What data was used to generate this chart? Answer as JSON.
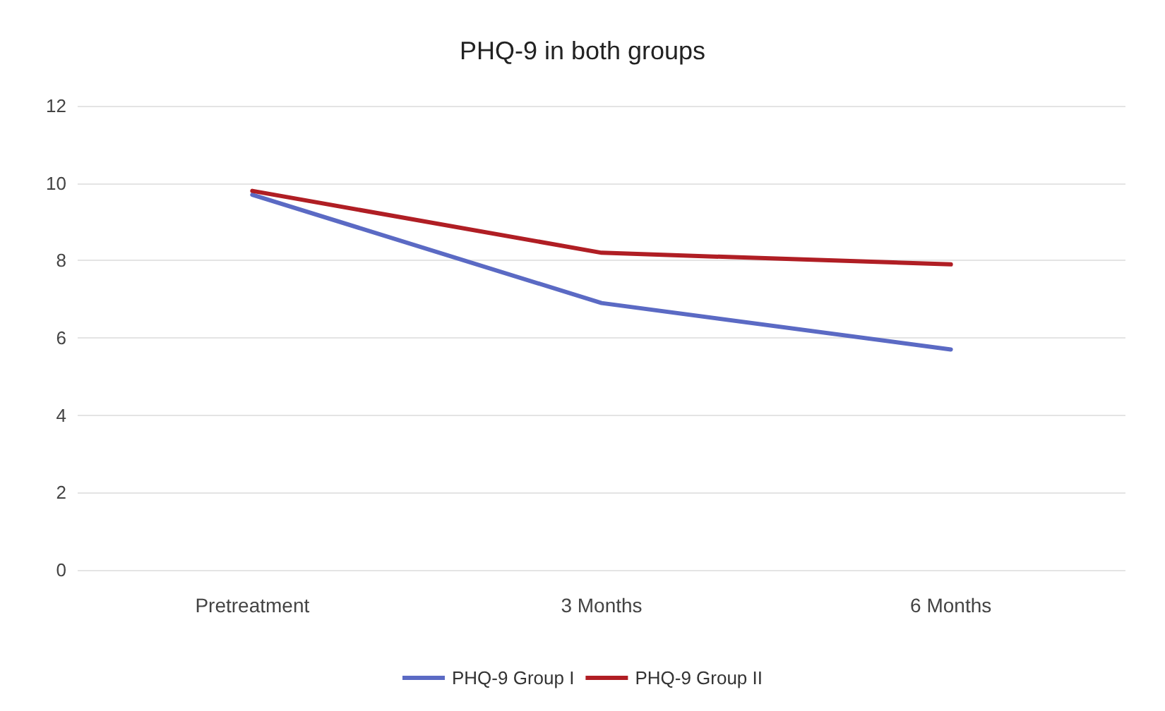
{
  "chart_data": {
    "type": "line",
    "title": "PHQ-9 in both groups",
    "categories": [
      "Pretreatment",
      "3 Months",
      "6 Months"
    ],
    "series": [
      {
        "name": "PHQ-9 Group I",
        "color": "#5b6ac4",
        "values": [
          9.7,
          6.9,
          5.7
        ]
      },
      {
        "name": "PHQ-9 Group II",
        "color": "#b01e24",
        "values": [
          9.8,
          8.2,
          7.9
        ]
      }
    ],
    "ylim": [
      0,
      12
    ],
    "yticks": [
      0,
      2,
      4,
      6,
      8,
      10,
      12
    ],
    "grid": "y",
    "legend": "bottom",
    "marker": "none",
    "line_style": "solid"
  }
}
